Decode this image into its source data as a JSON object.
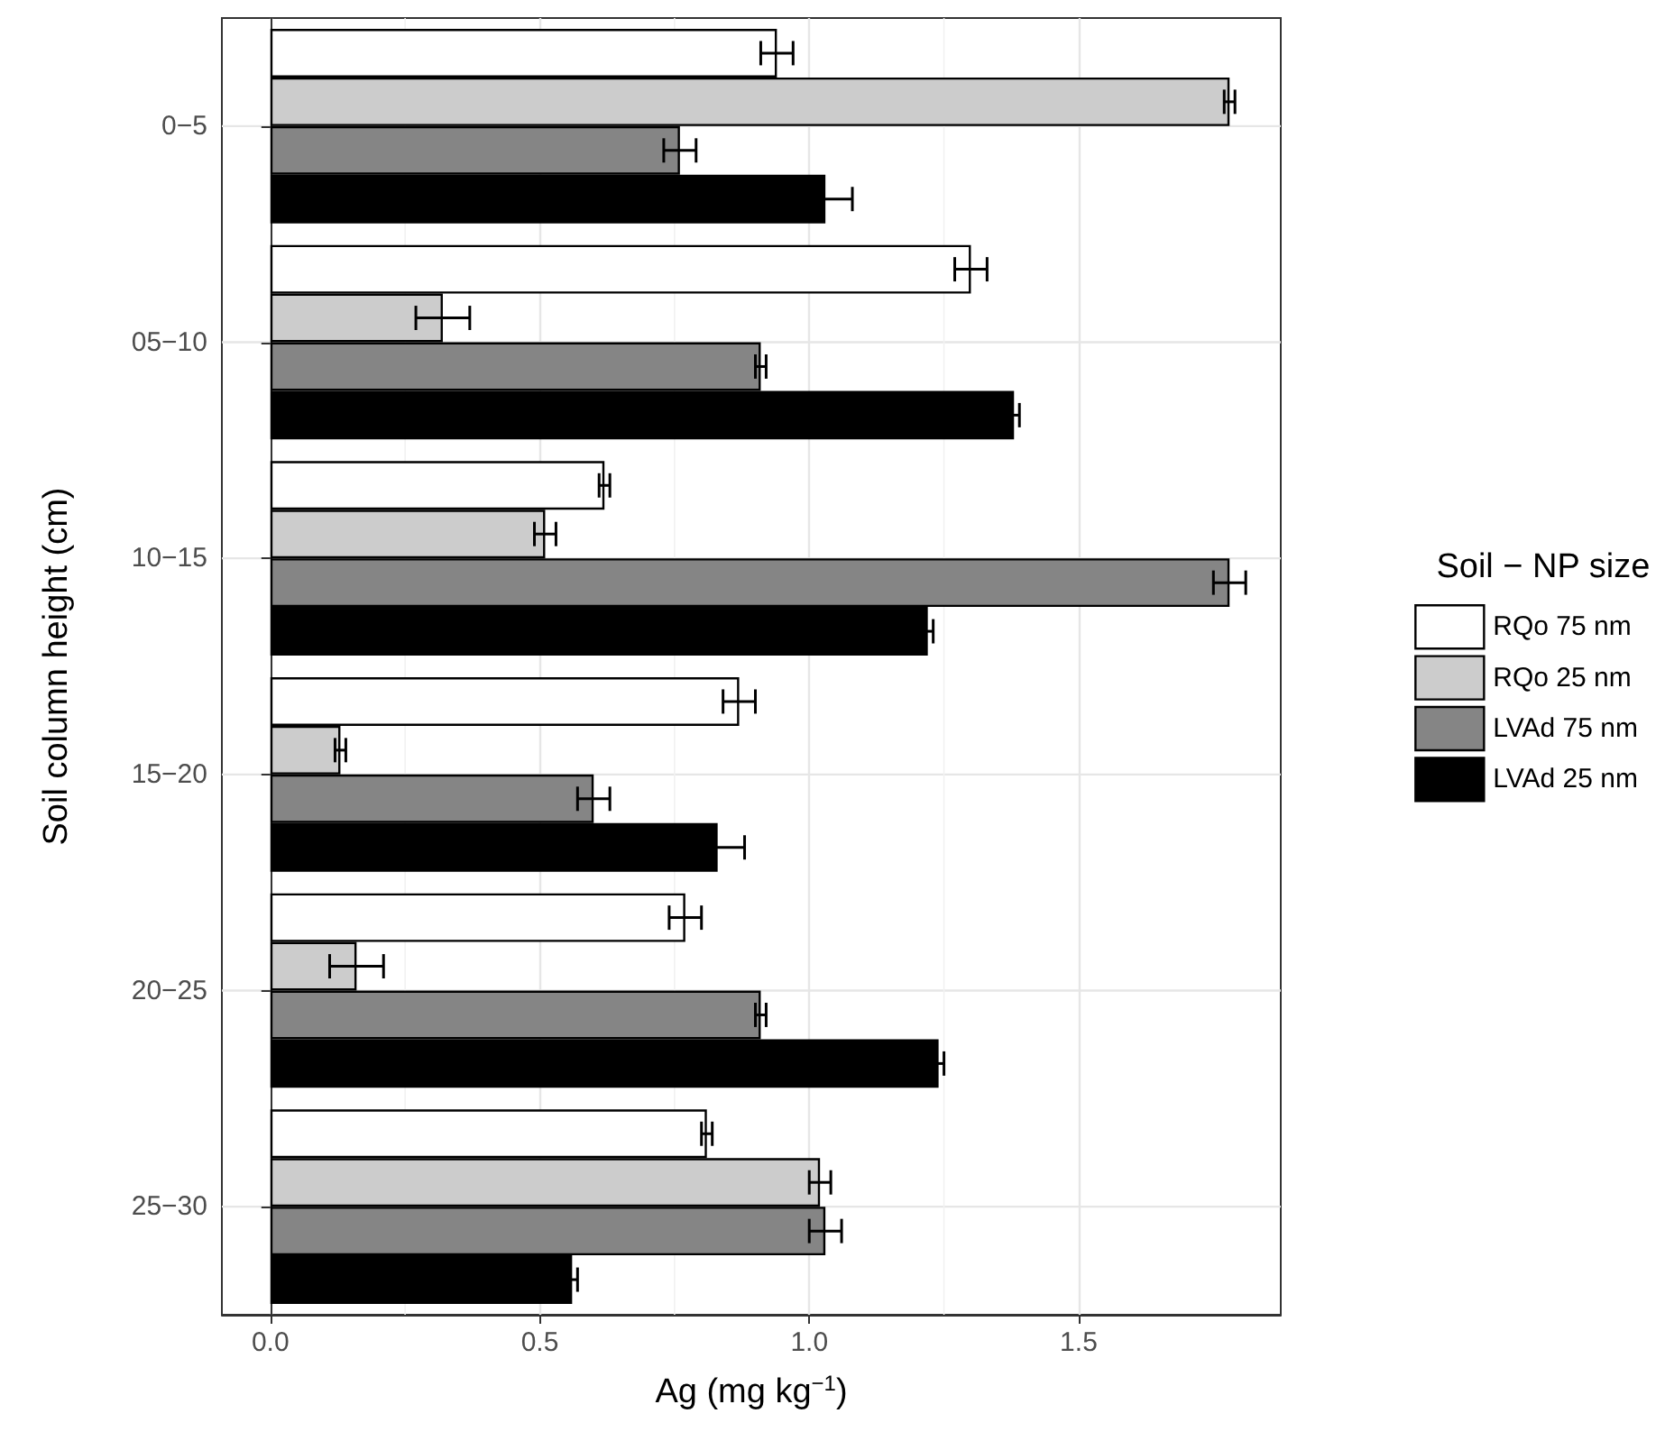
{
  "chart_data": {
    "type": "bar",
    "orientation": "horizontal",
    "xlabel": "Ag (mg kg$^{−1}$)",
    "ylabel": "Soil column height (cm)",
    "legend_title": "Soil − NP size",
    "legend": "right",
    "grid": true,
    "categories": [
      "0−5",
      "05−10",
      "10−15",
      "15−20",
      "20−25",
      "25−30"
    ],
    "xlim": [
      -0.09,
      1.875
    ],
    "xticks": [
      {
        "value": 0,
        "label": "0.0"
      },
      {
        "value": 0.5,
        "label": "0.5"
      },
      {
        "value": 1,
        "label": "1.0"
      },
      {
        "value": 1.5,
        "label": "1.5"
      }
    ],
    "series": [
      {
        "name": "RQo 75 nm",
        "color": "#ffffff",
        "values": [
          0.94,
          1.3,
          0.62,
          0.87,
          0.77,
          0.81
        ],
        "errors": [
          0.03,
          0.03,
          0.01,
          0.03,
          0.03,
          0.01
        ]
      },
      {
        "name": "RQo 25 nm",
        "color": "#cccccc",
        "values": [
          1.78,
          0.32,
          0.51,
          0.13,
          0.16,
          1.02
        ],
        "errors": [
          0.01,
          0.05,
          0.02,
          0.01,
          0.05,
          0.02
        ]
      },
      {
        "name": "LVAd 75 nm",
        "color": "#858585",
        "values": [
          0.76,
          0.91,
          1.78,
          0.6,
          0.91,
          1.03
        ],
        "errors": [
          0.03,
          0.01,
          0.03,
          0.03,
          0.01,
          0.03
        ]
      },
      {
        "name": "LVAd 25 nm",
        "color": "#000000",
        "values": [
          1.03,
          1.38,
          1.22,
          0.83,
          1.24,
          0.56
        ],
        "errors": [
          0.05,
          0.01,
          0.01,
          0.05,
          0.01,
          0.01
        ]
      }
    ]
  }
}
